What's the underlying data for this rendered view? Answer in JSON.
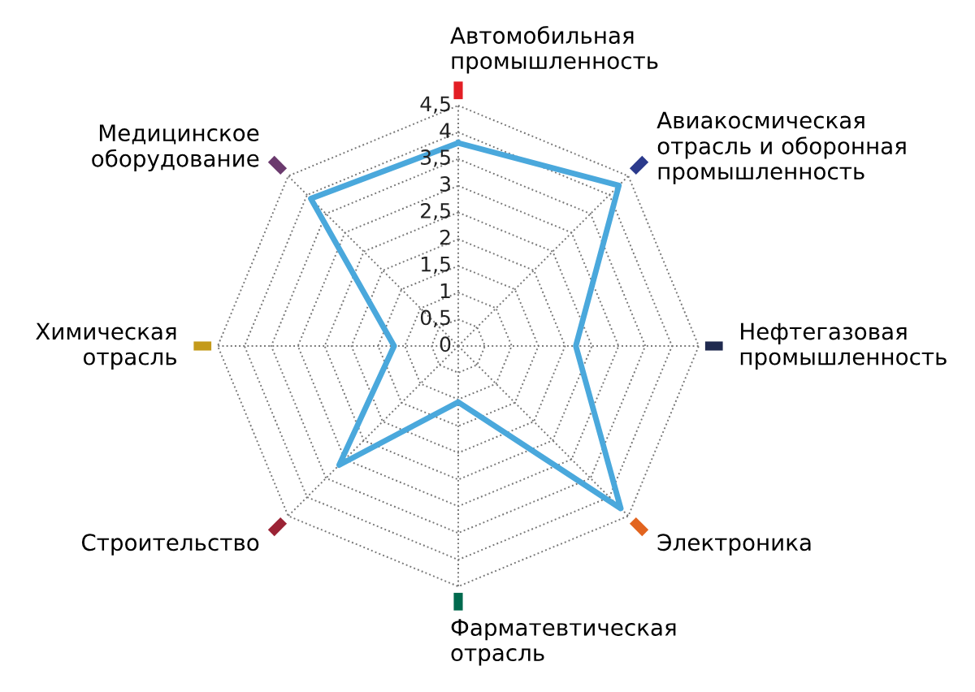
{
  "chart_data": {
    "type": "radar",
    "categories": [
      "Автомобильная\nпромышленность",
      "Авиакосмическая\nотрасль и оборонная\nпромышленность",
      "Нефтегазовая\nпромышленность",
      "Электроника",
      "Фарматевтическая\nотрасль",
      "Строительство",
      "Химическая\nотрасль",
      "Медицинское\nоборудование"
    ],
    "series": [
      {
        "color": "#4aa8dc",
        "values": [
          3.8,
          4.25,
          2.2,
          4.3,
          1.05,
          3.15,
          1.2,
          3.9
        ]
      }
    ],
    "ylim": [
      0,
      4.5
    ],
    "yticks": [
      0,
      {
        "value": 0.5,
        "label": "0,5"
      },
      1,
      {
        "value": 1.5,
        "label": "1,5"
      },
      2,
      {
        "value": 2.5,
        "label": "2,5"
      },
      3,
      {
        "value": 3.5,
        "label": "3,5"
      },
      4,
      {
        "value": 4.5,
        "label": "4,5"
      }
    ],
    "grid": true,
    "marker": "none",
    "line_style": "solid",
    "legend": false
  }
}
